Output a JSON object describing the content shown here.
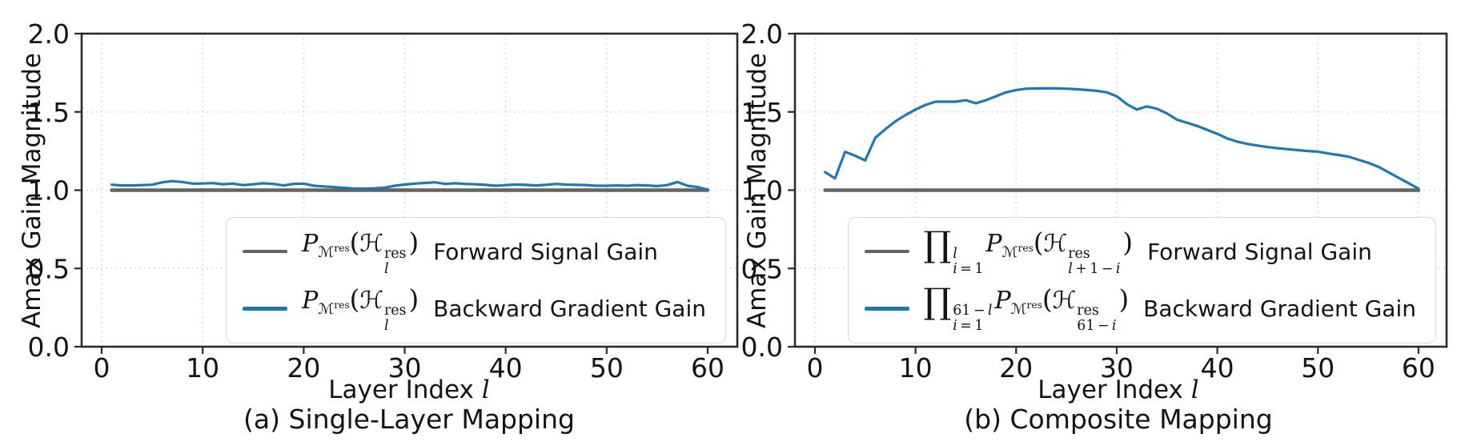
{
  "figure": {
    "ylabel": "Amax Gain Magnitude",
    "xlabel_text": "Layer Index",
    "xlabel_var": "l"
  },
  "colors": {
    "forward_line": "#636363",
    "backward_line": "#1f77b4",
    "spine": "#2b2b2b",
    "grid": "#cfcfcf",
    "text": "#141414"
  },
  "plots": [
    {
      "caption": "(a) Single-Layer Mapping",
      "legend": [
        {
          "sample_color": "#636363",
          "math_html": "<i class='v'>P</i><sub>ℳ<sup>res</sup></sub><span class='par'>(</span>ℋ<span class='st'><span>res</span><span><i class='v'>l</i></span></span><span class='par'>)</span>",
          "label": "Forward Signal Gain"
        },
        {
          "sample_color": "#1f77b4",
          "math_html": "<i class='v'>P</i><sub>ℳ<sup>res</sup></sub><span class='par'>(</span>ℋ<span class='st'><span>res</span><span><i class='v'>l</i></span></span><span class='par'>)</span>",
          "label": "Backward Gradient Gain"
        }
      ]
    },
    {
      "caption": "(b) Composite Mapping",
      "legend": [
        {
          "sample_color": "#636363",
          "math_html": "<span class='prod'>∏</span><span class='st'><span><i class='v'>l</i></span><span><i class='v'>i</i>&thinsp;=&thinsp;1</span></span><i class='v'>P</i><sub>ℳ<sup>res</sup></sub><span class='par'>(</span>ℋ<span class='st'><span>res</span><span><i class='v'>l</i>&thinsp;+&thinsp;1&thinsp;−&thinsp;<i class='v'>i</i></span></span><span class='par'>)</span>",
          "label": "Forward Signal Gain"
        },
        {
          "sample_color": "#1f77b4",
          "math_html": "<span class='prod'>∏</span><span class='st'><span>61&thinsp;−&thinsp;<i class='v'>l</i></span><span><i class='v'>i</i>&thinsp;=&thinsp;1</span></span><i class='v'>P</i><sub>ℳ<sup>res</sup></sub><span class='par'>(</span>ℋ<span class='st'><span>res</span><span>61&thinsp;−&thinsp;<i class='v'>i</i></span></span><span class='par'>)</span>",
          "label": "Backward Gradient Gain"
        }
      ]
    }
  ],
  "chart_data": [
    {
      "type": "line",
      "title": "(a) Single-Layer Mapping",
      "xlabel": "Layer Index l",
      "ylabel": "Amax Gain Magnitude",
      "xlim": [
        -1.95,
        62.95
      ],
      "ylim": [
        0,
        2
      ],
      "xticks": [
        0,
        10,
        20,
        30,
        40,
        50,
        60
      ],
      "yticks": [
        0.0,
        0.5,
        1.0,
        1.5,
        2.0
      ],
      "grid": true,
      "legend_position": "lower right",
      "x": [
        1,
        2,
        3,
        4,
        5,
        6,
        7,
        8,
        9,
        10,
        11,
        12,
        13,
        14,
        15,
        16,
        17,
        18,
        19,
        20,
        21,
        22,
        23,
        24,
        25,
        26,
        27,
        28,
        29,
        30,
        31,
        32,
        33,
        34,
        35,
        36,
        37,
        38,
        39,
        40,
        41,
        42,
        43,
        44,
        45,
        46,
        47,
        48,
        49,
        50,
        51,
        52,
        53,
        54,
        55,
        56,
        57,
        58,
        59,
        60
      ],
      "series": [
        {
          "name": "P_M^res(H_l^res) Forward Signal Gain",
          "color": "#636363",
          "width": 4.5,
          "values": [
            1.0,
            1.0,
            1.0,
            1.0,
            1.0,
            1.0,
            1.0,
            1.0,
            1.0,
            1.0,
            1.0,
            1.0,
            1.0,
            1.0,
            1.0,
            1.0,
            1.0,
            1.0,
            1.0,
            1.0,
            1.0,
            1.0,
            1.0,
            1.0,
            1.0,
            1.0,
            1.0,
            1.0,
            1.0,
            1.0,
            1.0,
            1.0,
            1.0,
            1.0,
            1.0,
            1.0,
            1.0,
            1.0,
            1.0,
            1.0,
            1.0,
            1.0,
            1.0,
            1.0,
            1.0,
            1.0,
            1.0,
            1.0,
            1.0,
            1.0,
            1.0,
            1.0,
            1.0,
            1.0,
            1.0,
            1.0,
            1.0,
            1.0,
            1.0,
            1.0
          ]
        },
        {
          "name": "P_M^res(H_l^res) Backward Gradient Gain",
          "color": "#1f77b4",
          "width": 3.2,
          "values": [
            1.035,
            1.03,
            1.03,
            1.032,
            1.035,
            1.05,
            1.058,
            1.052,
            1.042,
            1.043,
            1.045,
            1.038,
            1.042,
            1.032,
            1.038,
            1.044,
            1.04,
            1.03,
            1.04,
            1.042,
            1.028,
            1.024,
            1.02,
            1.015,
            1.01,
            1.01,
            1.012,
            1.016,
            1.028,
            1.036,
            1.042,
            1.046,
            1.05,
            1.04,
            1.044,
            1.04,
            1.038,
            1.034,
            1.028,
            1.032,
            1.036,
            1.034,
            1.03,
            1.034,
            1.04,
            1.036,
            1.034,
            1.032,
            1.028,
            1.028,
            1.03,
            1.028,
            1.032,
            1.03,
            1.026,
            1.032,
            1.052,
            1.028,
            1.02,
            1.003
          ]
        }
      ]
    },
    {
      "type": "line",
      "title": "(b) Composite Mapping",
      "xlabel": "Layer Index l",
      "ylabel": "Amax Gain Magnitude",
      "xlim": [
        -1.95,
        62.95
      ],
      "ylim": [
        0,
        2
      ],
      "xticks": [
        0,
        10,
        20,
        30,
        40,
        50,
        60
      ],
      "yticks": [
        0.0,
        0.5,
        1.0,
        1.5,
        2.0
      ],
      "grid": true,
      "legend_position": "lower right",
      "x": [
        1,
        2,
        3,
        4,
        5,
        6,
        7,
        8,
        9,
        10,
        11,
        12,
        13,
        14,
        15,
        16,
        17,
        18,
        19,
        20,
        21,
        22,
        23,
        24,
        25,
        26,
        27,
        28,
        29,
        30,
        31,
        32,
        33,
        34,
        35,
        36,
        37,
        38,
        39,
        40,
        41,
        42,
        43,
        44,
        45,
        46,
        47,
        48,
        49,
        50,
        51,
        52,
        53,
        54,
        55,
        56,
        57,
        58,
        59,
        60
      ],
      "series": [
        {
          "name": "prod_{i=1}^{l} P_M^res(H_{l+1-i}^res) Forward Signal Gain",
          "color": "#636363",
          "width": 4.5,
          "values": [
            1.0,
            1.0,
            1.0,
            1.0,
            1.0,
            1.0,
            1.0,
            1.0,
            1.0,
            1.0,
            1.0,
            1.0,
            1.0,
            1.0,
            1.0,
            1.0,
            1.0,
            1.0,
            1.0,
            1.0,
            1.0,
            1.0,
            1.0,
            1.0,
            1.0,
            1.0,
            1.0,
            1.0,
            1.0,
            1.0,
            1.0,
            1.0,
            1.0,
            1.0,
            1.0,
            1.0,
            1.0,
            1.0,
            1.0,
            1.0,
            1.0,
            1.0,
            1.0,
            1.0,
            1.0,
            1.0,
            1.0,
            1.0,
            1.0,
            1.0,
            1.0,
            1.0,
            1.0,
            1.0,
            1.0,
            1.0,
            1.0,
            1.0,
            1.0,
            1.0
          ]
        },
        {
          "name": "prod_{i=1}^{61-l} P_M^res(H_{61-i}^res) Backward Gradient Gain",
          "color": "#1f77b4",
          "width": 3.2,
          "values": [
            1.115,
            1.075,
            1.245,
            1.22,
            1.19,
            1.335,
            1.39,
            1.44,
            1.48,
            1.515,
            1.545,
            1.565,
            1.565,
            1.565,
            1.575,
            1.555,
            1.575,
            1.6,
            1.625,
            1.64,
            1.648,
            1.65,
            1.65,
            1.65,
            1.648,
            1.645,
            1.64,
            1.635,
            1.625,
            1.6,
            1.55,
            1.515,
            1.535,
            1.52,
            1.49,
            1.45,
            1.43,
            1.41,
            1.385,
            1.36,
            1.33,
            1.31,
            1.295,
            1.285,
            1.275,
            1.268,
            1.262,
            1.256,
            1.25,
            1.246,
            1.235,
            1.225,
            1.215,
            1.195,
            1.175,
            1.15,
            1.115,
            1.08,
            1.045,
            1.01
          ]
        }
      ]
    }
  ]
}
